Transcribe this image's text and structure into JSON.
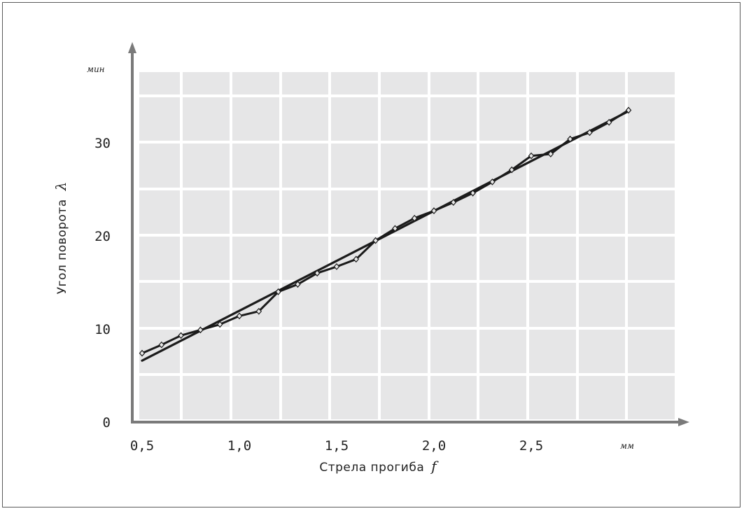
{
  "chart_data": {
    "type": "line",
    "xlabel": "Стрела прогиба",
    "xlabel_symbol": "f",
    "ylabel": "Угол поворота",
    "ylabel_symbol": "λ",
    "x_unit": "мм",
    "y_unit": "мин",
    "xlim": [
      0.5,
      3.15
    ],
    "ylim": [
      0,
      37.5
    ],
    "x_ticks": [
      {
        "value": 0.5,
        "label": "0,5"
      },
      {
        "value": 1.0,
        "label": "1,0"
      },
      {
        "value": 1.5,
        "label": "1,5"
      },
      {
        "value": 2.0,
        "label": "2,0"
      },
      {
        "value": 2.5,
        "label": "2,5"
      }
    ],
    "y_ticks": [
      {
        "value": 0,
        "label": "0"
      },
      {
        "value": 10,
        "label": "10"
      },
      {
        "value": 20,
        "label": "20"
      },
      {
        "value": 30,
        "label": "30"
      }
    ],
    "grid": true,
    "series": [
      {
        "style": "measured",
        "markers": "diamond",
        "x": [
          0.5,
          0.6,
          0.7,
          0.8,
          0.9,
          1.0,
          1.1,
          1.2,
          1.3,
          1.4,
          1.5,
          1.6,
          1.7,
          1.8,
          1.9,
          2.0,
          2.1,
          2.2,
          2.3,
          2.4,
          2.5,
          2.6,
          2.7,
          2.8,
          2.9,
          3.0
        ],
        "values": [
          7.4,
          8.3,
          9.3,
          9.9,
          10.5,
          11.4,
          11.9,
          14.0,
          14.8,
          16.0,
          16.7,
          17.5,
          19.5,
          20.8,
          21.9,
          22.7,
          23.6,
          24.6,
          25.8,
          27.1,
          28.6,
          28.8,
          30.4,
          31.1,
          32.2,
          33.5
        ]
      },
      {
        "style": "fit",
        "markers": "none",
        "x": [
          0.5,
          3.0
        ],
        "values": [
          6.6,
          33.4
        ]
      }
    ]
  }
}
